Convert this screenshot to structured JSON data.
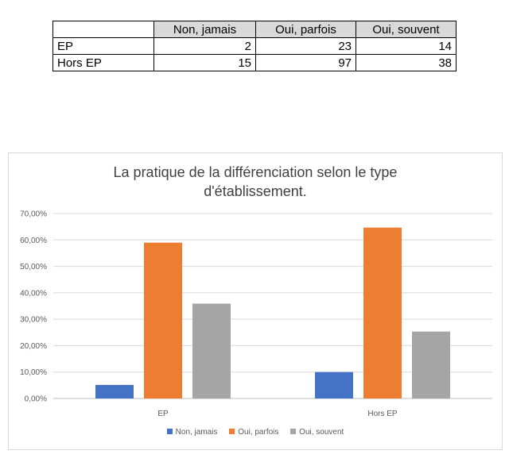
{
  "table": {
    "header": [
      "",
      "Non, jamais",
      "Oui, parfois",
      "Oui, souvent"
    ],
    "rows": [
      {
        "label": "EP",
        "values": [
          "2",
          "23",
          "14"
        ]
      },
      {
        "label": "Hors EP",
        "values": [
          "15",
          "97",
          "38"
        ]
      }
    ]
  },
  "chart_data": {
    "type": "bar",
    "title_line1": "La pratique de la différenciation selon le type",
    "title_line2": "d'établissement.",
    "categories": [
      "EP",
      "Hors EP"
    ],
    "series": [
      {
        "name": "Non, jamais",
        "color": "#4472c4",
        "values": [
          5.13,
          10.0
        ]
      },
      {
        "name": "Oui, parfois",
        "color": "#ed7d31",
        "values": [
          58.97,
          64.67
        ]
      },
      {
        "name": "Oui, souvent",
        "color": "#a5a5a5",
        "values": [
          35.9,
          25.33
        ]
      }
    ],
    "ylim": [
      0,
      70
    ],
    "yticks": [
      "0,00%",
      "10,00%",
      "20,00%",
      "30,00%",
      "40,00%",
      "50,00%",
      "60,00%",
      "70,00%"
    ],
    "xlabel": "",
    "ylabel": "",
    "legend_position": "bottom"
  }
}
